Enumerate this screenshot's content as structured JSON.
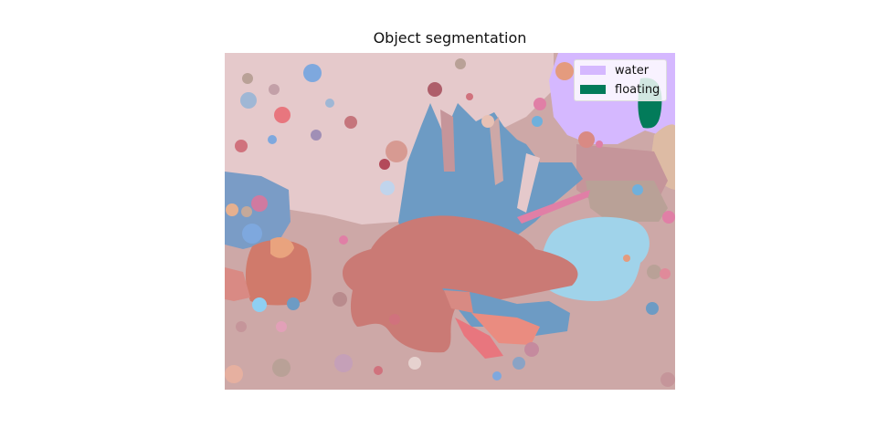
{
  "figure": {
    "title": "Object segmentation"
  },
  "legend": {
    "items": [
      {
        "label": "water",
        "color": "#d5b8ff"
      },
      {
        "label": "floating",
        "color": "#027b5a"
      }
    ]
  },
  "palette": {
    "background_pink": "#e5c9cb",
    "seabed": "#cda8a7",
    "blue_fan": "#6d9bc4",
    "fish_body": "#ca7a75",
    "light_blue": "#a0d3ea",
    "taupe": "#b9a197",
    "mauve": "#c5959a"
  }
}
